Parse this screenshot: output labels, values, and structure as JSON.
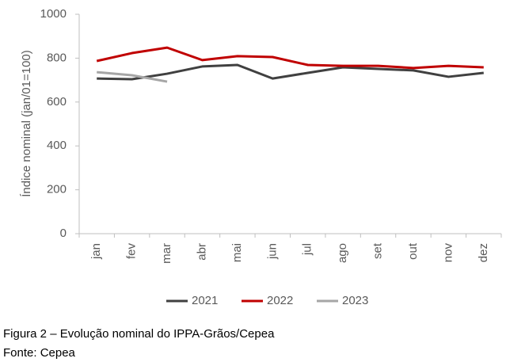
{
  "chart_data": {
    "type": "line",
    "y_label": "Índice nominal (jan/01=100)",
    "categories": [
      "jan",
      "fev",
      "mar",
      "abr",
      "mai",
      "jun",
      "jul",
      "ago",
      "set",
      "out",
      "nov",
      "dez"
    ],
    "series": [
      {
        "name": "2021",
        "color": "#404040",
        "values": [
          707,
          704,
          729,
          762,
          769,
          707,
          733,
          758,
          751,
          744,
          715,
          733
        ]
      },
      {
        "name": "2022",
        "color": "#c00000",
        "values": [
          787,
          823,
          848,
          791,
          809,
          805,
          769,
          765,
          765,
          755,
          765,
          758
        ]
      },
      {
        "name": "2023",
        "color": "#a6a6a6",
        "values": [
          736,
          722,
          693,
          null,
          null,
          null,
          null,
          null,
          null,
          null,
          null,
          null
        ]
      }
    ],
    "ylim": [
      0,
      1000
    ],
    "yticks": [
      0,
      200,
      400,
      600,
      800,
      1000
    ],
    "grid": false,
    "legend": "bottom",
    "caption": "Figura 2 – Evolução nominal do IPPA-Grãos/Cepea",
    "source": "Fonte: Cepea"
  }
}
